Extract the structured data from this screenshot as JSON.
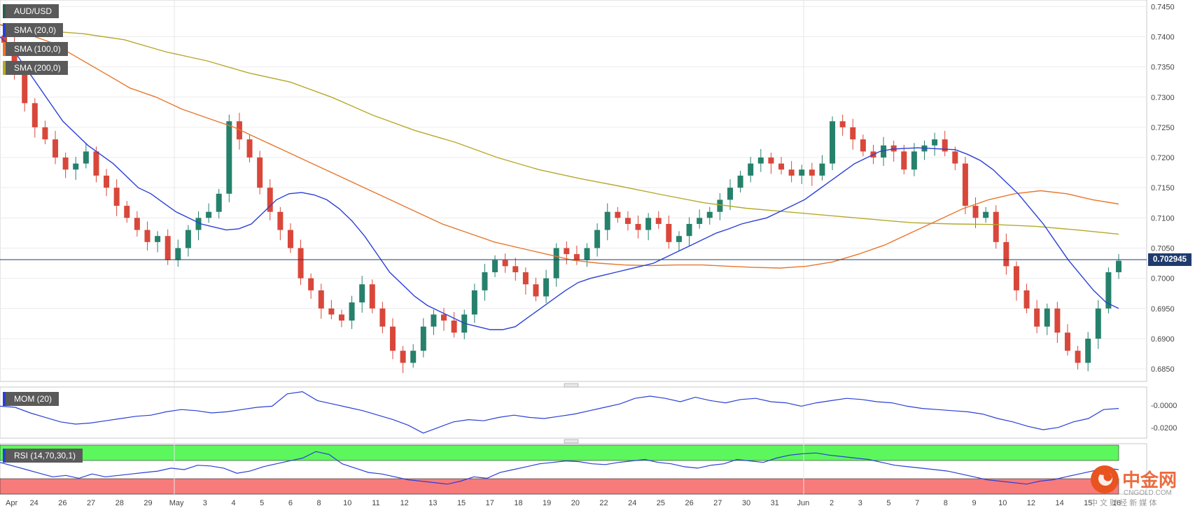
{
  "symbol": "AUD/USD",
  "indicators": {
    "sma20": "SMA (20,0)",
    "sma100": "SMA (100,0)",
    "sma200": "SMA (200,0)",
    "mom": "MOM (20)",
    "rsi": "RSI (14,70,30,1)"
  },
  "last_price": "0.702945",
  "colors": {
    "bull": "#26816b",
    "bear": "#d9473a",
    "sma20": "#2a3fd6",
    "sma100": "#e8762b",
    "sma200": "#b5a92a",
    "rsi_overbought": "#5cf75c",
    "rsi_oversold": "#f77b7b"
  },
  "watermark": {
    "name": "中金网",
    "url": "CNGOLD.COM",
    "tagline": "中 文 财 经 新 媒 体"
  },
  "chart_data": [
    {
      "type": "candlestick",
      "ylim": [
        0.6835,
        0.7455
      ],
      "y_ticks": [
        "0.7450",
        "0.7400",
        "0.7350",
        "0.7300",
        "0.7250",
        "0.7200",
        "0.7150",
        "0.7100",
        "0.7050",
        "0.7000",
        "0.6950",
        "0.6900",
        "0.6850"
      ],
      "x_tick_labels": [
        "Apr",
        "24",
        "26",
        "27",
        "28",
        "29",
        "May",
        "3",
        "4",
        "5",
        "6",
        "8",
        "10",
        "11",
        "12",
        "13",
        "15",
        "17",
        "18",
        "19",
        "20",
        "22",
        "24",
        "25",
        "26",
        "27",
        "30",
        "31",
        "Jun",
        "2",
        "3",
        "5",
        "7",
        "8",
        "9",
        "10",
        "12",
        "14",
        "15",
        "16"
      ],
      "close_series": [
        0.739,
        0.734,
        0.729,
        0.725,
        0.723,
        0.72,
        0.718,
        0.719,
        0.721,
        0.717,
        0.715,
        0.712,
        0.71,
        0.708,
        0.706,
        0.707,
        0.703,
        0.705,
        0.708,
        0.71,
        0.711,
        0.714,
        0.726,
        0.723,
        0.72,
        0.715,
        0.711,
        0.708,
        0.705,
        0.7,
        0.698,
        0.695,
        0.694,
        0.693,
        0.696,
        0.699,
        0.695,
        0.692,
        0.688,
        0.686,
        0.688,
        0.692,
        0.694,
        0.693,
        0.691,
        0.694,
        0.698,
        0.701,
        0.703,
        0.702,
        0.701,
        0.699,
        0.697,
        0.7,
        0.705,
        0.704,
        0.703,
        0.705,
        0.708,
        0.711,
        0.71,
        0.709,
        0.708,
        0.71,
        0.709,
        0.706,
        0.707,
        0.709,
        0.71,
        0.711,
        0.713,
        0.715,
        0.717,
        0.719,
        0.72,
        0.719,
        0.718,
        0.717,
        0.718,
        0.717,
        0.719,
        0.726,
        0.725,
        0.723,
        0.721,
        0.72,
        0.722,
        0.721,
        0.718,
        0.721,
        0.722,
        0.723,
        0.721,
        0.719,
        0.712,
        0.71,
        0.711,
        0.706,
        0.702,
        0.698,
        0.695,
        0.692,
        0.695,
        0.691,
        0.688,
        0.686,
        0.69,
        0.695,
        0.701,
        0.7029
      ],
      "sma20": [
        0.74,
        0.738,
        0.735,
        0.732,
        0.729,
        0.726,
        0.724,
        0.722,
        0.7205,
        0.719,
        0.717,
        0.715,
        0.714,
        0.7125,
        0.711,
        0.71,
        0.709,
        0.7085,
        0.708,
        0.7082,
        0.709,
        0.711,
        0.713,
        0.714,
        0.7142,
        0.7138,
        0.713,
        0.7115,
        0.7095,
        0.707,
        0.704,
        0.701,
        0.699,
        0.697,
        0.6955,
        0.6945,
        0.6935,
        0.6925,
        0.692,
        0.6915,
        0.6915,
        0.692,
        0.6935,
        0.695,
        0.6965,
        0.698,
        0.6993,
        0.7,
        0.7005,
        0.701,
        0.7015,
        0.702,
        0.7025,
        0.7035,
        0.7045,
        0.7055,
        0.7065,
        0.7075,
        0.7082,
        0.709,
        0.7095,
        0.71,
        0.711,
        0.712,
        0.713,
        0.7145,
        0.716,
        0.7175,
        0.719,
        0.72,
        0.721,
        0.7214,
        0.7215,
        0.7216,
        0.7215,
        0.7214,
        0.7213,
        0.7205,
        0.7195,
        0.718,
        0.716,
        0.714,
        0.7115,
        0.709,
        0.706,
        0.703,
        0.7005,
        0.698,
        0.696,
        0.695
      ],
      "sma100": [
        0.742,
        0.7405,
        0.739,
        0.7365,
        0.734,
        0.7315,
        0.73,
        0.728,
        0.7265,
        0.725,
        0.723,
        0.721,
        0.719,
        0.717,
        0.715,
        0.713,
        0.711,
        0.709,
        0.7075,
        0.706,
        0.705,
        0.704,
        0.703,
        0.7025,
        0.7022,
        0.7021,
        0.7022,
        0.7022,
        0.702,
        0.7018,
        0.7017,
        0.702,
        0.7027,
        0.704,
        0.7055,
        0.7075,
        0.7095,
        0.7115,
        0.713,
        0.714,
        0.7145,
        0.714,
        0.713,
        0.7123
      ],
      "sma200": [
        0.742,
        0.741,
        0.7405,
        0.7395,
        0.7375,
        0.736,
        0.734,
        0.7325,
        0.73,
        0.727,
        0.7245,
        0.7225,
        0.72,
        0.718,
        0.7165,
        0.7152,
        0.7138,
        0.7125,
        0.7116,
        0.711,
        0.7104,
        0.7098,
        0.7092,
        0.709,
        0.7089,
        0.7086,
        0.708,
        0.7073
      ],
      "series_names": [
        "SMA (20,0)",
        "SMA (100,0)",
        "SMA (200,0)"
      ]
    },
    {
      "type": "line",
      "name": "MOM (20)",
      "y_ticks": [
        "-0.0000",
        "-0.0200"
      ],
      "values": [
        -0.001,
        -0.002,
        -0.007,
        -0.011,
        -0.015,
        -0.017,
        -0.016,
        -0.014,
        -0.012,
        -0.01,
        -0.009,
        -0.006,
        -0.004,
        -0.005,
        -0.007,
        -0.006,
        -0.004,
        -0.002,
        -0.001,
        0.01,
        0.012,
        0.004,
        0.001,
        -0.002,
        -0.005,
        -0.009,
        -0.013,
        -0.018,
        -0.025,
        -0.02,
        -0.015,
        -0.013,
        -0.014,
        -0.011,
        -0.009,
        -0.011,
        -0.012,
        -0.01,
        -0.008,
        -0.005,
        -0.002,
        0.001,
        0.006,
        0.008,
        0.006,
        0.003,
        0.007,
        0.004,
        0.002,
        0.005,
        0.006,
        0.003,
        0.002,
        -0.001,
        0.002,
        0.004,
        0.006,
        0.005,
        0.003,
        0.002,
        -0.001,
        -0.003,
        -0.004,
        -0.005,
        -0.006,
        -0.008,
        -0.012,
        -0.015,
        -0.019,
        -0.022,
        -0.02,
        -0.015,
        -0.012,
        -0.004,
        -0.003
      ]
    },
    {
      "type": "line",
      "name": "RSI (14,70,30,1)",
      "values": [
        60,
        55,
        50,
        45,
        40,
        42,
        38,
        44,
        40,
        42,
        44,
        46,
        48,
        52,
        50,
        56,
        55,
        52,
        45,
        48,
        54,
        58,
        62,
        66,
        75,
        71,
        58,
        52,
        46,
        44,
        40,
        36,
        34,
        32,
        30,
        34,
        40,
        38,
        46,
        50,
        54,
        58,
        60,
        62,
        61,
        58,
        57,
        60,
        62,
        64,
        60,
        58,
        54,
        52,
        56,
        58,
        64,
        62,
        60,
        66,
        70,
        72,
        73,
        70,
        68,
        66,
        64,
        60,
        56,
        54,
        52,
        50,
        48,
        44,
        40,
        36,
        34,
        32,
        30,
        34,
        36,
        40,
        44,
        48,
        52,
        50
      ]
    }
  ]
}
